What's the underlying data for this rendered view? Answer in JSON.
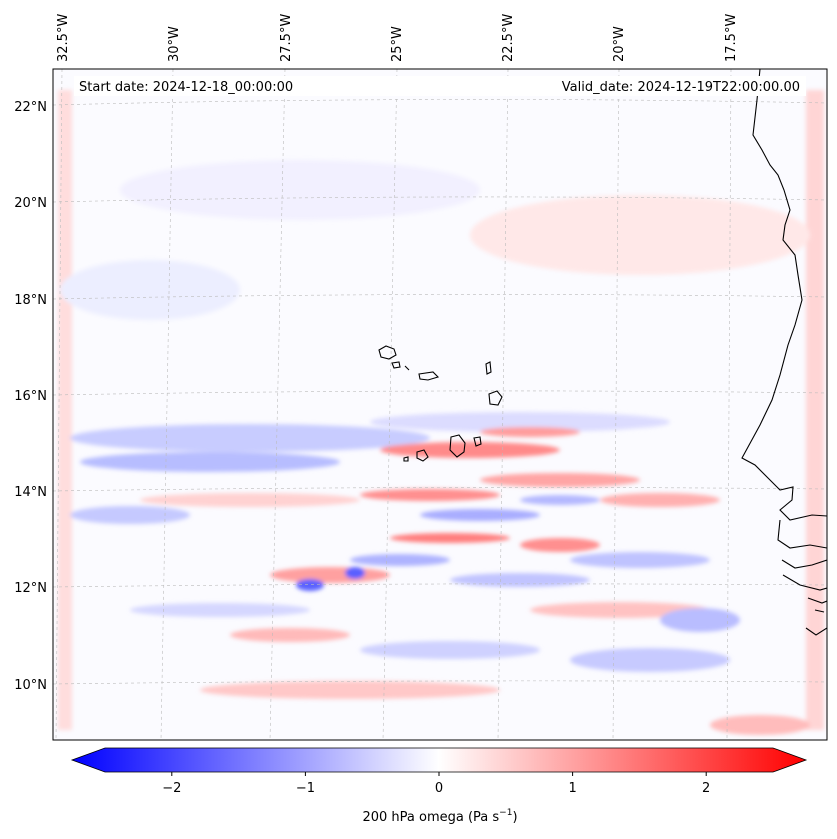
{
  "map": {
    "start_label": "Start date: 2024-12-18_00:00:00",
    "valid_label": "Valid_date: 2024-12-19T22:00:00.00",
    "lon_labels": [
      "32.5°W",
      "30°W",
      "27.5°W",
      "25°W",
      "22.5°W",
      "20°W",
      "17.5°W"
    ],
    "lat_labels": [
      "22°N",
      "20°N",
      "18°N",
      "16°N",
      "14°N",
      "12°N",
      "10°N"
    ]
  },
  "colorbar": {
    "label_main": "200 hPa omega (Pa s",
    "label_exp": "−1",
    "label_end": ")",
    "ticks": [
      "−2",
      "−1",
      "0",
      "1",
      "2"
    ],
    "tick_values": [
      -2,
      -1,
      0,
      1,
      2
    ],
    "range": [
      -2.5,
      2.5
    ],
    "colors": {
      "low": "#0000ff",
      "mid": "#ffffff",
      "high": "#ff0000"
    }
  },
  "colors": {
    "coast": "#000000",
    "grid": "#bbbbbb",
    "frame": "#000000"
  }
}
